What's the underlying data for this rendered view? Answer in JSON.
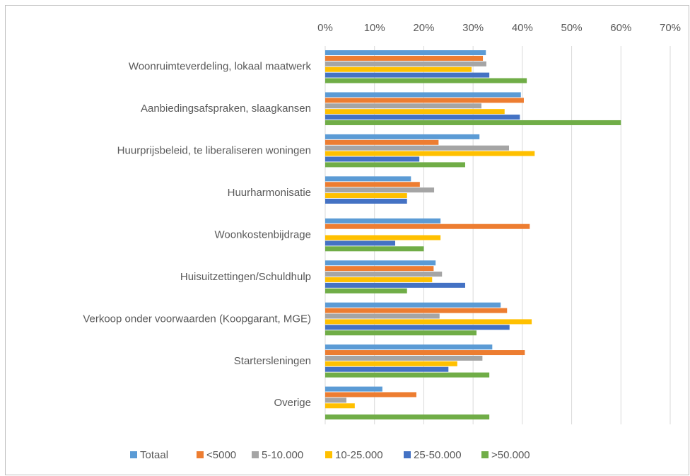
{
  "chart_data": {
    "type": "bar",
    "orientation": "horizontal",
    "categories": [
      "Woonruimteverdeling, lokaal maatwerk",
      "Aanbiedingsafspraken, slaagkansen",
      "Huurprijsbeleid, te liberaliseren woningen",
      "Huurharmonisatie",
      "Woonkostenbijdrage",
      "Huisuitzettingen/Schuldhulp",
      "Verkoop onder voorwaarden (Koopgarant, MGE)",
      "Startersleningen",
      "Overige"
    ],
    "series": [
      {
        "name": "Totaal",
        "color": "#5b9bd5",
        "values": [
          32.6,
          39.7,
          31.3,
          17.4,
          23.4,
          22.4,
          35.6,
          33.9,
          11.6
        ]
      },
      {
        "name": "<5000",
        "color": "#ed7d31",
        "values": [
          32,
          40.3,
          23,
          19.2,
          41.5,
          22,
          36.9,
          40.5,
          18.5
        ]
      },
      {
        "name": "5-10.000",
        "color": "#a5a5a5",
        "values": [
          32.7,
          31.7,
          37.3,
          22.1,
          0,
          23.7,
          23.2,
          31.9,
          4.3
        ]
      },
      {
        "name": "10-25.000",
        "color": "#ffc000",
        "values": [
          29.7,
          36.4,
          42.5,
          16.6,
          23.4,
          21.7,
          41.9,
          26.8,
          6
        ]
      },
      {
        "name": "25-50.000",
        "color": "#4472c4",
        "values": [
          33.3,
          39.5,
          19.1,
          16.6,
          14.2,
          28.4,
          37.4,
          25,
          0
        ]
      },
      {
        "name": ">50.000",
        "color": "#70ad47",
        "values": [
          40.9,
          60,
          28.4,
          0,
          20,
          16.6,
          30.7,
          33.3,
          33.3
        ]
      }
    ],
    "xlim": [
      0,
      70
    ],
    "xticks": [
      {
        "value": 0,
        "label": "0%"
      },
      {
        "value": 10,
        "label": "10%"
      },
      {
        "value": 20,
        "label": "20%"
      },
      {
        "value": 30,
        "label": "30%"
      },
      {
        "value": 40,
        "label": "40%"
      },
      {
        "value": 50,
        "label": "50%"
      },
      {
        "value": 60,
        "label": "60%"
      },
      {
        "value": 70,
        "label": "70%"
      }
    ],
    "grid": true,
    "legend": "bottom"
  }
}
